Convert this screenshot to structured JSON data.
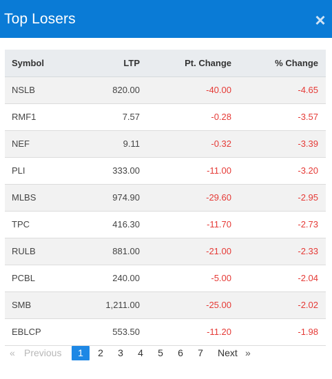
{
  "header": {
    "title": "Top Losers",
    "close_icon": "×"
  },
  "table": {
    "columns": [
      "Symbol",
      "LTP",
      "Pt. Change",
      "% Change"
    ],
    "rows": [
      {
        "symbol": "NSLB",
        "ltp": "820.00",
        "pt_change": "-40.00",
        "pct_change": "-4.65"
      },
      {
        "symbol": "RMF1",
        "ltp": "7.57",
        "pt_change": "-0.28",
        "pct_change": "-3.57"
      },
      {
        "symbol": "NEF",
        "ltp": "9.11",
        "pt_change": "-0.32",
        "pct_change": "-3.39"
      },
      {
        "symbol": "PLI",
        "ltp": "333.00",
        "pt_change": "-11.00",
        "pct_change": "-3.20"
      },
      {
        "symbol": "MLBS",
        "ltp": "974.90",
        "pt_change": "-29.60",
        "pct_change": "-2.95"
      },
      {
        "symbol": "TPC",
        "ltp": "416.30",
        "pt_change": "-11.70",
        "pct_change": "-2.73"
      },
      {
        "symbol": "RULB",
        "ltp": "881.00",
        "pt_change": "-21.00",
        "pct_change": "-2.33"
      },
      {
        "symbol": "PCBL",
        "ltp": "240.00",
        "pt_change": "-5.00",
        "pct_change": "-2.04"
      },
      {
        "symbol": "SMB",
        "ltp": "1,211.00",
        "pt_change": "-25.00",
        "pct_change": "-2.02"
      },
      {
        "symbol": "EBLCP",
        "ltp": "553.50",
        "pt_change": "-11.20",
        "pct_change": "-1.98"
      }
    ]
  },
  "pagination": {
    "prev_arrow": "«",
    "prev_label": "Previous",
    "pages": [
      "1",
      "2",
      "3",
      "4",
      "5",
      "6",
      "7"
    ],
    "current_page": "1",
    "next_label": "Next",
    "next_arrow": "»"
  },
  "colors": {
    "header_bg": "#0a7bd6",
    "negative": "#e53935",
    "active_page": "#1e88e5"
  }
}
